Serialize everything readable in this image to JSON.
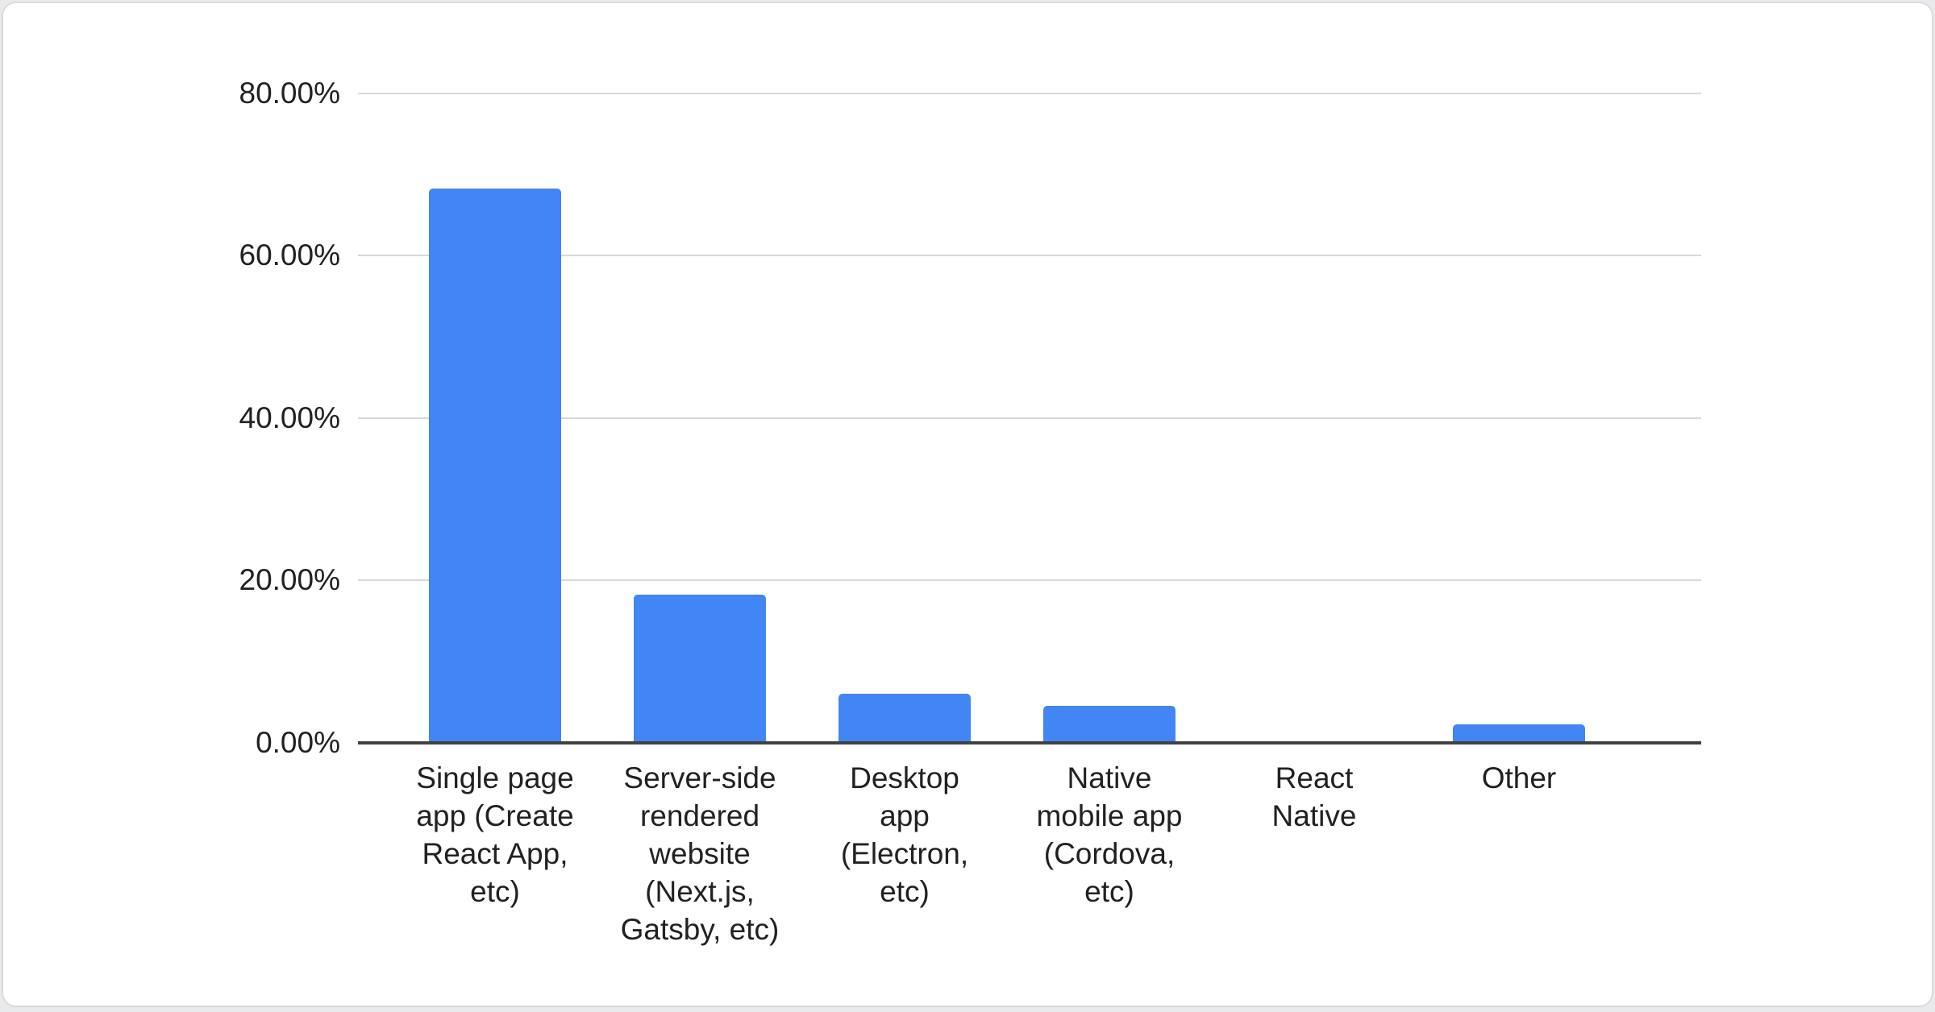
{
  "chart_data": {
    "type": "bar",
    "title": "",
    "categories": [
      "Single page app (Create React App, etc)",
      "Server-side rendered website (Next.js, Gatsby, etc)",
      "Desktop app (Electron, etc)",
      "Native mobile app (Cordova, etc)",
      "React Native",
      "Other"
    ],
    "category_label_lines": [
      "Single page\napp (Create\nReact App,\netc)",
      "Server-side\nrendered\nwebsite\n(Next.js,\nGatsby, etc)",
      "Desktop\napp\n(Electron,\netc)",
      "Native\nmobile app\n(Cordova,\netc)",
      "React\nNative",
      "Other"
    ],
    "values": [
      68.3,
      18.3,
      6.1,
      4.6,
      0,
      2.3
    ],
    "unit": "%",
    "xlabel": "",
    "ylabel": "",
    "ylim": [
      0,
      80
    ],
    "yticks": [
      "0.00%",
      "20.00%",
      "40.00%",
      "60.00%",
      "80.00%"
    ],
    "grid": true,
    "legend": "none",
    "colors": {
      "bar": "#4285f4",
      "gridline": "#d9d9d9",
      "axis_line": "#424242",
      "tick_text": "#212121",
      "card_background": "#ffffff",
      "card_border": "#d8dadd",
      "page_background": "#e8eaec"
    }
  }
}
